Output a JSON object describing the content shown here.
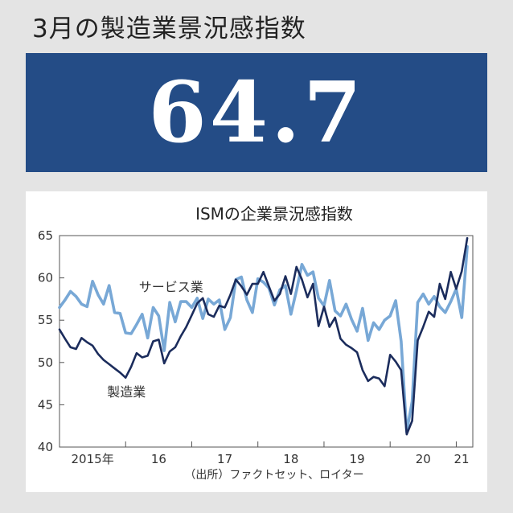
{
  "headline": "3月の製造業景況感指数",
  "big_value": "64.7",
  "colors": {
    "banner": "#244c86",
    "manufacturing": "#1b2c5c",
    "services": "#78a8d6"
  },
  "chart_data": {
    "type": "line",
    "title": "ISMの企業景況感指数",
    "source": "（出所）ファクトセット、ロイター",
    "ylim": [
      40,
      65
    ],
    "yticks": [
      40,
      45,
      50,
      55,
      60,
      65
    ],
    "xlim": [
      2015.0,
      2021.25
    ],
    "xticks": [
      {
        "label": "2015年",
        "pos": 2015.5
      },
      {
        "label": "16",
        "pos": 2016.5
      },
      {
        "label": "17",
        "pos": 2017.5
      },
      {
        "label": "18",
        "pos": 2018.5
      },
      {
        "label": "19",
        "pos": 2019.5
      },
      {
        "label": "20",
        "pos": 2020.5
      },
      {
        "label": "21",
        "pos": 2021.08
      }
    ],
    "year_boundaries": [
      2016,
      2017,
      2018,
      2019,
      2020,
      2021
    ],
    "start": "2015-01",
    "series": [
      {
        "name": "製造業",
        "values": [
          53.9,
          52.8,
          51.8,
          51.6,
          52.9,
          52.4,
          52.0,
          51.0,
          50.3,
          49.8,
          49.3,
          48.8,
          48.2,
          49.5,
          51.1,
          50.6,
          50.8,
          52.5,
          52.7,
          49.9,
          51.3,
          51.8,
          53.1,
          54.2,
          55.6,
          57.0,
          57.6,
          55.7,
          55.4,
          56.7,
          56.5,
          58.0,
          59.8,
          59.0,
          58.0,
          59.3,
          59.3,
          60.7,
          59.0,
          57.3,
          58.1,
          60.2,
          58.1,
          61.3,
          59.8,
          57.7,
          59.3,
          54.3,
          56.6,
          54.2,
          55.3,
          52.8,
          52.1,
          51.7,
          51.2,
          49.1,
          47.8,
          48.3,
          48.1,
          47.2,
          50.9,
          50.1,
          49.1,
          41.5,
          43.1,
          52.6,
          54.2,
          56.0,
          55.4,
          59.3,
          57.5,
          60.7,
          58.7,
          60.8,
          64.7
        ],
        "label_pos": {
          "x": 2015.72,
          "y": 46.0
        }
      },
      {
        "name": "サービス業",
        "values": [
          56.5,
          57.4,
          58.4,
          57.8,
          56.9,
          56.6,
          59.6,
          58.0,
          56.9,
          59.1,
          55.9,
          55.8,
          53.5,
          53.4,
          54.5,
          55.7,
          52.9,
          56.5,
          55.5,
          51.4,
          57.1,
          54.8,
          57.2,
          57.2,
          56.5,
          57.6,
          55.2,
          57.5,
          56.9,
          57.4,
          53.9,
          55.3,
          59.8,
          60.1,
          57.4,
          55.9,
          59.9,
          59.5,
          58.8,
          56.8,
          58.6,
          59.1,
          55.7,
          58.5,
          61.6,
          60.3,
          60.7,
          57.6,
          56.7,
          59.7,
          56.1,
          55.5,
          56.9,
          55.1,
          53.7,
          56.4,
          52.6,
          54.7,
          53.9,
          55.0,
          55.5,
          57.3,
          52.5,
          41.8,
          45.4,
          57.1,
          58.1,
          56.9,
          57.8,
          56.6,
          55.9,
          57.2,
          58.7,
          55.3,
          63.7
        ],
        "label_pos": {
          "x": 2016.2,
          "y": 58.4
        }
      }
    ]
  }
}
